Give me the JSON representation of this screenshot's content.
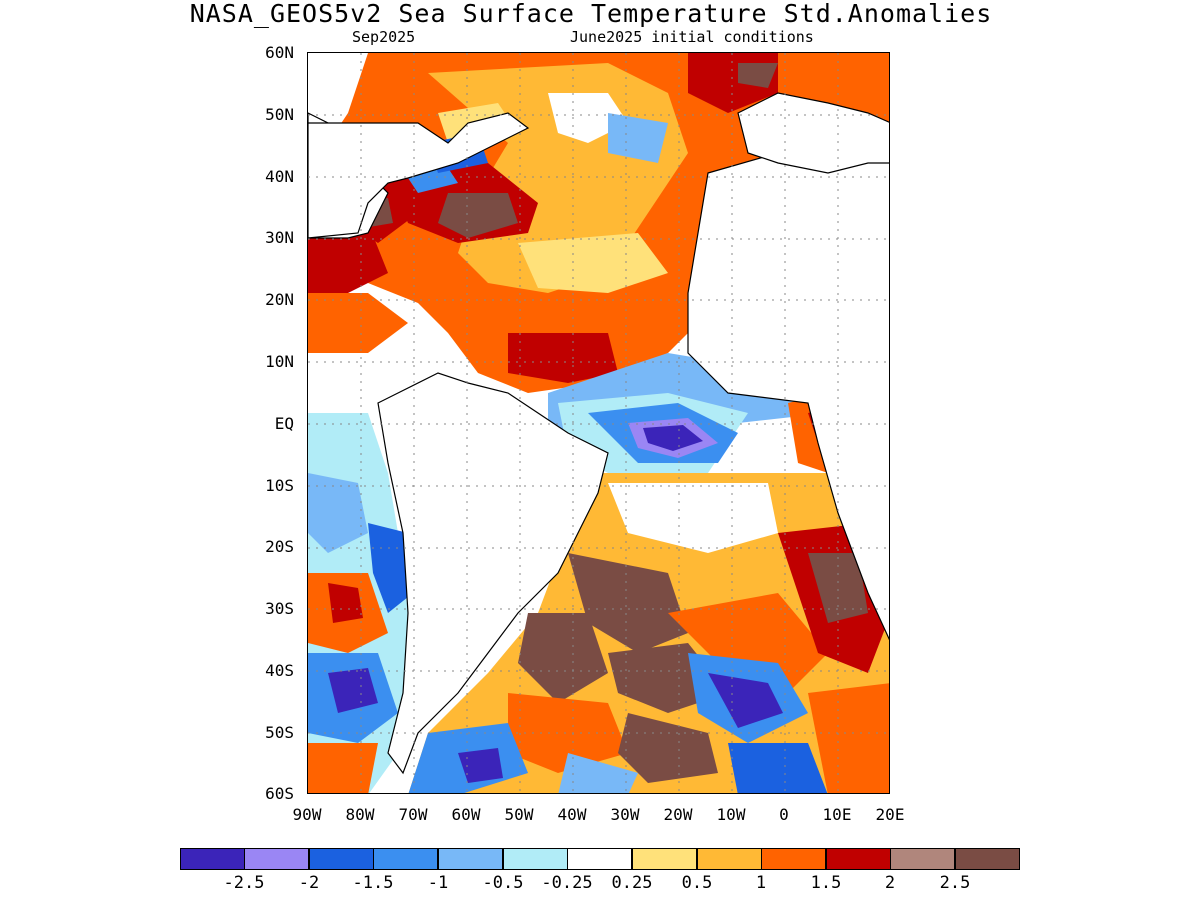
{
  "title": "NASA_GEOS5v2 Sea Surface Temperature Std.Anomalies",
  "subtitle_left": "Sep2025",
  "subtitle_right": "June2025 initial conditions",
  "map": {
    "lat_ticks": [
      "60N",
      "50N",
      "40N",
      "30N",
      "20N",
      "10N",
      "EQ",
      "10S",
      "20S",
      "30S",
      "40S",
      "50S",
      "60S"
    ],
    "lon_ticks": [
      "90W",
      "80W",
      "70W",
      "60W",
      "50W",
      "40W",
      "30W",
      "20W",
      "10W",
      "0",
      "10E",
      "20E"
    ],
    "grid": "dotted",
    "land_color": "#ffffff",
    "coastline_color": "#000000"
  },
  "colorbar": {
    "colors": [
      "#3b24b9",
      "#9a86f4",
      "#1b61e0",
      "#3b8ff0",
      "#78b8f7",
      "#b1ecf7",
      "#ffffff",
      "#ffe17a",
      "#ffb935",
      "#ff6300",
      "#c00000",
      "#b0867c",
      "#7a4c44"
    ],
    "labels": [
      "-2.5",
      "-2",
      "-1.5",
      "-1",
      "-0.5",
      "-0.25",
      "0.25",
      "0.5",
      "1",
      "1.5",
      "2",
      "2.5"
    ]
  }
}
